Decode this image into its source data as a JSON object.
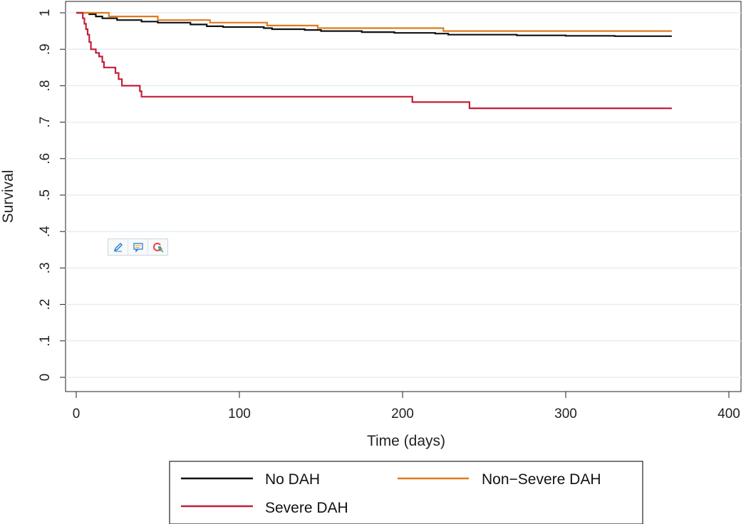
{
  "chart_data": {
    "type": "line",
    "title": "",
    "xlabel": "Time (days)",
    "ylabel": "Survival",
    "xlim": [
      0,
      400
    ],
    "ylim": [
      0,
      1
    ],
    "xticks": [
      0,
      100,
      200,
      300,
      400
    ],
    "yticks": [
      0,
      0.1,
      0.2,
      0.3,
      0.4,
      0.5,
      0.6,
      0.7,
      0.8,
      0.9,
      1
    ],
    "ytick_labels": [
      "0",
      ".1",
      ".2",
      ".3",
      ".4",
      ".5",
      ".6",
      ".7",
      ".8",
      ".9",
      "1"
    ],
    "grid": true,
    "legend_position": "bottom",
    "series": [
      {
        "name": "No DAH",
        "color": "#111111",
        "points": [
          [
            0,
            1
          ],
          [
            8,
            0.996
          ],
          [
            12,
            0.99
          ],
          [
            16,
            0.985
          ],
          [
            25,
            0.98
          ],
          [
            40,
            0.976
          ],
          [
            50,
            0.973
          ],
          [
            70,
            0.968
          ],
          [
            80,
            0.963
          ],
          [
            90,
            0.961
          ],
          [
            115,
            0.958
          ],
          [
            120,
            0.955
          ],
          [
            140,
            0.953
          ],
          [
            150,
            0.95
          ],
          [
            175,
            0.947
          ],
          [
            195,
            0.945
          ],
          [
            220,
            0.943
          ],
          [
            228,
            0.94
          ],
          [
            270,
            0.938
          ],
          [
            300,
            0.937
          ],
          [
            330,
            0.936
          ],
          [
            365,
            0.936
          ]
        ]
      },
      {
        "name": "Non−Severe DAH",
        "color": "#e07a1f",
        "points": [
          [
            0,
            1
          ],
          [
            20,
            0.99
          ],
          [
            50,
            0.98
          ],
          [
            82,
            0.973
          ],
          [
            117,
            0.965
          ],
          [
            148,
            0.958
          ],
          [
            225,
            0.95
          ],
          [
            365,
            0.95
          ]
        ]
      },
      {
        "name": "Severe DAH",
        "color": "#c0203a",
        "points": [
          [
            0,
            1
          ],
          [
            4,
            0.985
          ],
          [
            5,
            0.97
          ],
          [
            6,
            0.955
          ],
          [
            7,
            0.94
          ],
          [
            8,
            0.92
          ],
          [
            9,
            0.9
          ],
          [
            12,
            0.89
          ],
          [
            14,
            0.88
          ],
          [
            16,
            0.865
          ],
          [
            17,
            0.85
          ],
          [
            24,
            0.835
          ],
          [
            26,
            0.818
          ],
          [
            28,
            0.8
          ],
          [
            39,
            0.785
          ],
          [
            40,
            0.77
          ],
          [
            206,
            0.755
          ],
          [
            241,
            0.738
          ],
          [
            365,
            0.738
          ]
        ]
      }
    ]
  },
  "toolbar": {
    "icons": [
      "pencil-icon",
      "comment-icon",
      "google-search-icon"
    ]
  }
}
